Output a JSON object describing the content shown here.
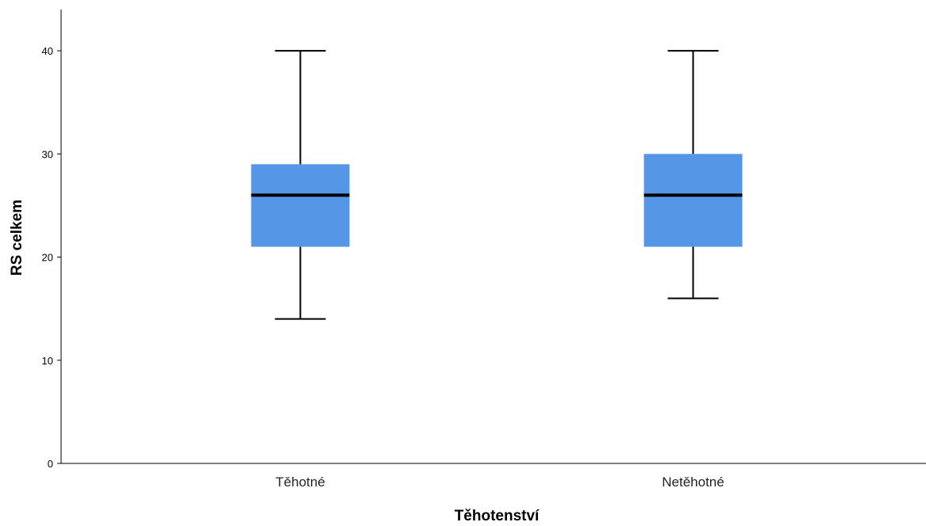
{
  "chart_data": {
    "type": "boxplot",
    "title": "",
    "xlabel": "Těhotenství",
    "ylabel": "RS celkem",
    "ylim": [
      0,
      44
    ],
    "yticks": [
      0,
      10,
      20,
      30,
      40
    ],
    "grid": false,
    "box_color": "#5596e6",
    "categories": [
      "Těhotné",
      "Netěhotné"
    ],
    "boxes": [
      {
        "category": "Těhotné",
        "min": 14,
        "q1": 21,
        "median": 26,
        "q3": 29,
        "max": 40
      },
      {
        "category": "Netěhotné",
        "min": 16,
        "q1": 21,
        "median": 26,
        "q3": 30,
        "max": 40
      }
    ]
  }
}
